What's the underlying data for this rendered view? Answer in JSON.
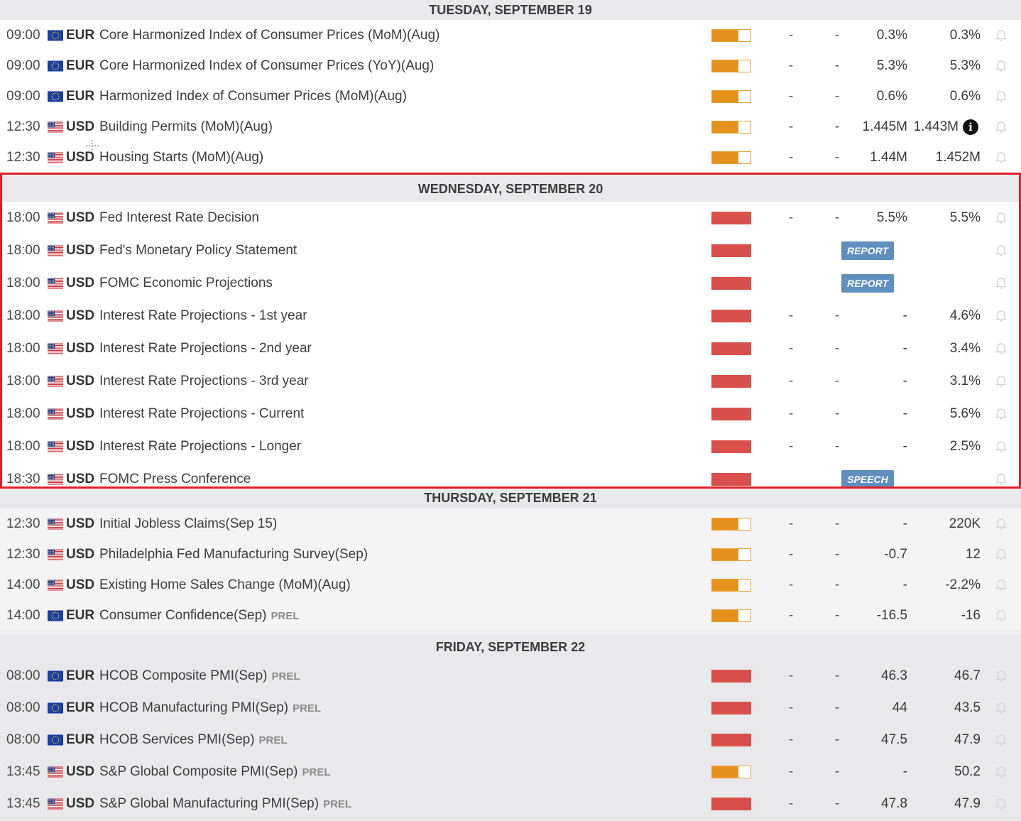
{
  "days": [
    {
      "header": "TUESDAY, SEPTEMBER 19",
      "events": [
        {
          "time": "09:00",
          "flag": "eu-flag-icon",
          "currency": "EUR",
          "name": "Core Harmonized Index of Consumer Prices (MoM)(Aug)",
          "tag": "",
          "impact": "medium",
          "actual": "-",
          "deviation": "-",
          "consensus": "0.3%",
          "previous": "0.3%",
          "badge": "",
          "prev_info": false
        },
        {
          "time": "09:00",
          "flag": "eu-flag-icon",
          "currency": "EUR",
          "name": "Core Harmonized Index of Consumer Prices (YoY)(Aug)",
          "tag": "",
          "impact": "medium",
          "actual": "-",
          "deviation": "-",
          "consensus": "5.3%",
          "previous": "5.3%",
          "badge": "",
          "prev_info": false
        },
        {
          "time": "09:00",
          "flag": "eu-flag-icon",
          "currency": "EUR",
          "name": "Harmonized Index of Consumer Prices (MoM)(Aug)",
          "tag": "",
          "impact": "medium",
          "actual": "-",
          "deviation": "-",
          "consensus": "0.6%",
          "previous": "0.6%",
          "badge": "",
          "prev_info": false
        },
        {
          "time": "12:30",
          "flag": "us-flag-icon",
          "currency": "USD",
          "name": "Building Permits (MoM)(Aug)",
          "tag": "",
          "impact": "medium",
          "actual": "-",
          "deviation": "-",
          "consensus": "1.445M",
          "previous": "1.443M",
          "badge": "",
          "prev_info": true,
          "prev_info_symbol": "i"
        },
        {
          "time": "12:30",
          "flag": "us-flag-icon",
          "currency": "USD",
          "name": "Housing Starts (MoM)(Aug)",
          "tag": "",
          "impact": "medium",
          "actual": "-",
          "deviation": "-",
          "consensus": "1.44M",
          "previous": "1.452M",
          "badge": "",
          "prev_info": false
        }
      ]
    },
    {
      "header": "WEDNESDAY, SEPTEMBER 20",
      "events": [
        {
          "time": "18:00",
          "flag": "us-flag-icon",
          "currency": "USD",
          "name": "Fed Interest Rate Decision",
          "tag": "",
          "impact": "high",
          "actual": "-",
          "deviation": "-",
          "consensus": "5.5%",
          "previous": "5.5%",
          "badge": "",
          "prev_info": false
        },
        {
          "time": "18:00",
          "flag": "us-flag-icon",
          "currency": "USD",
          "name": "Fed's Monetary Policy Statement",
          "tag": "",
          "impact": "high",
          "actual": "",
          "deviation": "",
          "consensus": "",
          "previous": "",
          "badge": "REPORT",
          "prev_info": false
        },
        {
          "time": "18:00",
          "flag": "us-flag-icon",
          "currency": "USD",
          "name": "FOMC Economic Projections",
          "tag": "",
          "impact": "high",
          "actual": "",
          "deviation": "",
          "consensus": "",
          "previous": "",
          "badge": "REPORT",
          "prev_info": false
        },
        {
          "time": "18:00",
          "flag": "us-flag-icon",
          "currency": "USD",
          "name": "Interest Rate Projections - 1st year",
          "tag": "",
          "impact": "high",
          "actual": "-",
          "deviation": "-",
          "consensus": "-",
          "previous": "4.6%",
          "badge": "",
          "prev_info": false
        },
        {
          "time": "18:00",
          "flag": "us-flag-icon",
          "currency": "USD",
          "name": "Interest Rate Projections - 2nd year",
          "tag": "",
          "impact": "high",
          "actual": "-",
          "deviation": "-",
          "consensus": "-",
          "previous": "3.4%",
          "badge": "",
          "prev_info": false
        },
        {
          "time": "18:00",
          "flag": "us-flag-icon",
          "currency": "USD",
          "name": "Interest Rate Projections - 3rd year",
          "tag": "",
          "impact": "high",
          "actual": "-",
          "deviation": "-",
          "consensus": "-",
          "previous": "3.1%",
          "badge": "",
          "prev_info": false
        },
        {
          "time": "18:00",
          "flag": "us-flag-icon",
          "currency": "USD",
          "name": "Interest Rate Projections - Current",
          "tag": "",
          "impact": "high",
          "actual": "-",
          "deviation": "-",
          "consensus": "-",
          "previous": "5.6%",
          "badge": "",
          "prev_info": false
        },
        {
          "time": "18:00",
          "flag": "us-flag-icon",
          "currency": "USD",
          "name": "Interest Rate Projections - Longer",
          "tag": "",
          "impact": "high",
          "actual": "-",
          "deviation": "-",
          "consensus": "-",
          "previous": "2.5%",
          "badge": "",
          "prev_info": false
        },
        {
          "time": "18:30",
          "flag": "us-flag-icon",
          "currency": "USD",
          "name": "FOMC Press Conference",
          "tag": "",
          "impact": "high",
          "actual": "",
          "deviation": "",
          "consensus": "",
          "previous": "",
          "badge": "SPEECH",
          "prev_info": false
        }
      ]
    },
    {
      "header": "THURSDAY, SEPTEMBER 21",
      "events": [
        {
          "time": "12:30",
          "flag": "us-flag-icon",
          "currency": "USD",
          "name": "Initial Jobless Claims(Sep 15)",
          "tag": "",
          "impact": "medium",
          "actual": "-",
          "deviation": "-",
          "consensus": "-",
          "previous": "220K",
          "badge": "",
          "prev_info": false
        },
        {
          "time": "12:30",
          "flag": "us-flag-icon",
          "currency": "USD",
          "name": "Philadelphia Fed Manufacturing Survey(Sep)",
          "tag": "",
          "impact": "medium",
          "actual": "-",
          "deviation": "-",
          "consensus": "-0.7",
          "previous": "12",
          "badge": "",
          "prev_info": false
        },
        {
          "time": "14:00",
          "flag": "us-flag-icon",
          "currency": "USD",
          "name": "Existing Home Sales Change (MoM)(Aug)",
          "tag": "",
          "impact": "medium",
          "actual": "-",
          "deviation": "-",
          "consensus": "-",
          "previous": "-2.2%",
          "badge": "",
          "prev_info": false
        },
        {
          "time": "14:00",
          "flag": "eu-flag-icon",
          "currency": "EUR",
          "name": "Consumer Confidence(Sep)",
          "tag": "PREL",
          "impact": "medium",
          "actual": "-",
          "deviation": "-",
          "consensus": "-16.5",
          "previous": "-16",
          "badge": "",
          "prev_info": false
        }
      ]
    },
    {
      "header": "FRIDAY, SEPTEMBER 22",
      "events": [
        {
          "time": "08:00",
          "flag": "eu-flag-icon",
          "currency": "EUR",
          "name": "HCOB Composite PMI(Sep)",
          "tag": "PREL",
          "impact": "high",
          "actual": "-",
          "deviation": "-",
          "consensus": "46.3",
          "previous": "46.7",
          "badge": "",
          "prev_info": false
        },
        {
          "time": "08:00",
          "flag": "eu-flag-icon",
          "currency": "EUR",
          "name": "HCOB Manufacturing PMI(Sep)",
          "tag": "PREL",
          "impact": "high",
          "actual": "-",
          "deviation": "-",
          "consensus": "44",
          "previous": "43.5",
          "badge": "",
          "prev_info": false
        },
        {
          "time": "08:00",
          "flag": "eu-flag-icon",
          "currency": "EUR",
          "name": "HCOB Services PMI(Sep)",
          "tag": "PREL",
          "impact": "high",
          "actual": "-",
          "deviation": "-",
          "consensus": "47.5",
          "previous": "47.9",
          "badge": "",
          "prev_info": false
        },
        {
          "time": "13:45",
          "flag": "us-flag-icon",
          "currency": "USD",
          "name": "S&P Global Composite PMI(Sep)",
          "tag": "PREL",
          "impact": "medium",
          "actual": "-",
          "deviation": "-",
          "consensus": "-",
          "previous": "50.2",
          "badge": "",
          "prev_info": false
        },
        {
          "time": "13:45",
          "flag": "us-flag-icon",
          "currency": "USD",
          "name": "S&P Global Manufacturing PMI(Sep)",
          "tag": "PREL",
          "impact": "high",
          "actual": "-",
          "deviation": "-",
          "consensus": "47.8",
          "previous": "47.9",
          "badge": "",
          "prev_info": false
        }
      ]
    }
  ],
  "colors": {
    "impact_high": "#d9504a",
    "impact_medium": "#e5911b",
    "badge": "#5f8fbf",
    "highlight_border": "#e41e26",
    "day_header_bg": "#e9e9eb"
  },
  "highlighted_day_index": 1
}
